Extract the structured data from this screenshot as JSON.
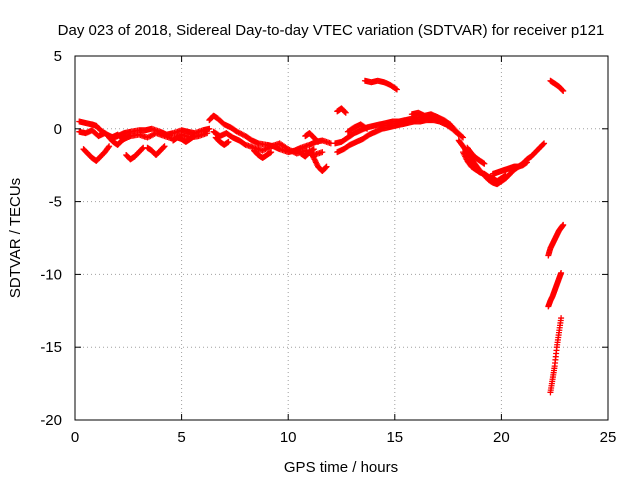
{
  "chart_data": {
    "type": "scatter",
    "title": "Day 023 of 2018, Sidereal Day-to-day VTEC variation (SDTVAR) for receiver p121",
    "xlabel": "GPS time / hours",
    "ylabel": "SDTVAR / TECUs",
    "xlim": [
      0,
      25
    ],
    "ylim": [
      -20,
      5
    ],
    "xticks": [
      "0",
      "5",
      "10",
      "15",
      "20",
      "25"
    ],
    "yticks": [
      "5",
      "0",
      "-5",
      "-10",
      "-15",
      "-20"
    ],
    "grid": true,
    "marker": "+",
    "color": "#ff0000",
    "series": [
      {
        "name": "SDTVAR",
        "tracks": [
          {
            "x": [
              0.2,
              0.5,
              0.8,
              1.0,
              1.2,
              1.5,
              1.8,
              2.0,
              2.3,
              2.6,
              3.0,
              3.3,
              3.6,
              4.0,
              4.3,
              4.6,
              5.0,
              5.3,
              5.6,
              6.0,
              6.3
            ],
            "y": [
              0.5,
              0.4,
              0.3,
              0.2,
              -0.1,
              -0.4,
              -0.6,
              -0.5,
              -0.3,
              -0.2,
              -0.1,
              -0.1,
              0.0,
              -0.2,
              -0.4,
              -0.3,
              -0.1,
              -0.2,
              -0.3,
              -0.1,
              0.0
            ]
          },
          {
            "x": [
              0.2,
              0.5,
              0.8,
              1.1,
              1.4,
              1.7,
              2.0,
              2.3,
              2.6,
              3.0,
              3.4,
              3.8,
              4.2,
              4.6,
              5.0,
              5.4,
              5.8,
              6.2
            ],
            "y": [
              -0.2,
              -0.3,
              -0.1,
              -0.5,
              -0.3,
              -0.6,
              -0.4,
              -0.7,
              -0.5,
              -0.4,
              -0.6,
              -0.3,
              -0.5,
              -0.7,
              -0.4,
              -0.6,
              -0.5,
              -0.3
            ]
          },
          {
            "x": [
              0.4,
              0.6,
              0.8,
              1.0,
              1.2,
              1.4,
              1.6
            ],
            "y": [
              -1.4,
              -1.7,
              -2.0,
              -2.2,
              -1.9,
              -1.6,
              -1.2
            ]
          },
          {
            "x": [
              2.4,
              2.6,
              2.8,
              3.0,
              3.2
            ],
            "y": [
              -1.8,
              -2.1,
              -1.9,
              -1.6,
              -1.3
            ]
          },
          {
            "x": [
              3.4,
              3.6,
              3.8,
              4.0,
              4.2
            ],
            "y": [
              -1.3,
              -1.5,
              -1.8,
              -1.5,
              -1.2
            ]
          },
          {
            "x": [
              1.6,
              1.8,
              2.0,
              2.2,
              2.4
            ],
            "y": [
              -0.6,
              -0.9,
              -1.1,
              -0.8,
              -0.6
            ]
          },
          {
            "x": [
              4.6,
              4.8,
              5.0,
              5.2,
              5.4,
              5.6
            ],
            "y": [
              -0.8,
              -0.6,
              -0.7,
              -0.9,
              -0.7,
              -0.5
            ]
          },
          {
            "x": [
              6.3,
              6.5,
              6.7,
              7.0,
              7.3,
              7.6,
              8.0,
              8.3,
              8.6,
              9.0,
              9.3,
              9.6,
              10.0,
              10.3,
              10.6,
              11.0,
              11.3,
              11.6,
              12.0
            ],
            "y": [
              0.6,
              0.9,
              0.7,
              0.3,
              0.1,
              -0.2,
              -0.5,
              -0.8,
              -1.0,
              -1.1,
              -1.2,
              -1.4,
              -1.6,
              -1.5,
              -1.3,
              -1.1,
              -0.9,
              -0.8,
              -1.0
            ]
          },
          {
            "x": [
              6.5,
              6.8,
              7.1,
              7.4,
              7.7,
              8.0,
              8.4,
              8.8,
              9.2,
              9.6,
              10.0,
              10.4,
              10.8,
              11.2,
              11.6
            ],
            "y": [
              -0.2,
              -0.5,
              -0.3,
              -0.6,
              -0.8,
              -1.1,
              -1.3,
              -1.5,
              -1.2,
              -1.0,
              -1.4,
              -1.7,
              -1.5,
              -1.8,
              -1.6
            ]
          },
          {
            "x": [
              6.6,
              6.8,
              7.0,
              7.2
            ],
            "y": [
              -0.6,
              -0.9,
              -1.1,
              -0.9
            ]
          },
          {
            "x": [
              8.4,
              8.6,
              8.8,
              9.0,
              9.2
            ],
            "y": [
              -1.5,
              -1.8,
              -2.0,
              -1.8,
              -1.6
            ]
          },
          {
            "x": [
              10.6,
              10.8,
              11.0,
              11.2
            ],
            "y": [
              -1.7,
              -1.9,
              -1.6,
              -1.4
            ]
          },
          {
            "x": [
              11.0,
              11.2,
              11.4,
              11.6,
              11.8
            ],
            "y": [
              -1.5,
              -2.0,
              -2.6,
              -2.9,
              -2.6
            ]
          },
          {
            "x": [
              10.8,
              11.0,
              11.2,
              11.4
            ],
            "y": [
              -0.5,
              -0.3,
              -0.6,
              -0.9
            ]
          },
          {
            "x": [
              12.3,
              12.5,
              12.7
            ],
            "y": [
              1.2,
              1.4,
              1.1
            ]
          },
          {
            "x": [
              12.2,
              12.5,
              12.8,
              13.1,
              13.4,
              13.7,
              14.0,
              14.3,
              14.6,
              14.9,
              15.2,
              15.5,
              15.8,
              16.1,
              16.4,
              16.7,
              17.0,
              17.3,
              17.6,
              17.9,
              18.2
            ],
            "y": [
              -1.0,
              -0.9,
              -0.6,
              -0.3,
              -0.1,
              0.1,
              0.2,
              0.3,
              0.4,
              0.5,
              0.5,
              0.6,
              0.7,
              0.8,
              0.8,
              0.9,
              0.8,
              0.6,
              0.3,
              -0.2,
              -0.6
            ]
          },
          {
            "x": [
              12.3,
              12.6,
              12.9,
              13.2,
              13.5,
              13.8,
              14.1,
              14.4,
              14.7,
              15.0,
              15.3,
              15.6,
              15.9,
              16.2,
              16.5,
              16.8,
              17.1,
              17.4,
              17.7,
              18.0
            ],
            "y": [
              -1.6,
              -1.4,
              -1.1,
              -0.9,
              -0.7,
              -0.4,
              -0.2,
              0.0,
              0.1,
              0.2,
              0.3,
              0.4,
              0.5,
              0.5,
              0.6,
              0.6,
              0.5,
              0.3,
              0.0,
              -0.4
            ]
          },
          {
            "x": [
              12.8,
              13.1,
              13.4,
              13.7
            ],
            "y": [
              -0.2,
              0.1,
              0.3,
              0.0
            ]
          },
          {
            "x": [
              15.8,
              16.1,
              16.4,
              16.7,
              17.0
            ],
            "y": [
              1.0,
              1.1,
              0.9,
              1.0,
              0.8
            ]
          },
          {
            "x": [
              13.6,
              13.9,
              14.2,
              14.5,
              14.8,
              15.1
            ],
            "y": [
              3.3,
              3.2,
              3.3,
              3.2,
              3.0,
              2.7
            ]
          },
          {
            "x": [
              18.0,
              18.2,
              18.4,
              18.6,
              18.8,
              19.0,
              19.2,
              19.4,
              19.6,
              19.8,
              20.0,
              20.2,
              20.4,
              20.6,
              20.8,
              21.0,
              21.2,
              21.4,
              21.6,
              21.8,
              22.0
            ],
            "y": [
              -0.8,
              -1.2,
              -1.6,
              -2.1,
              -2.5,
              -2.9,
              -3.2,
              -3.5,
              -3.7,
              -3.8,
              -3.6,
              -3.4,
              -3.1,
              -2.8,
              -2.6,
              -2.4,
              -2.1,
              -1.9,
              -1.6,
              -1.3,
              -1.0
            ]
          },
          {
            "x": [
              18.2,
              18.4,
              18.6,
              18.8,
              19.0,
              19.2,
              19.4,
              19.6,
              19.8,
              20.0,
              20.2
            ],
            "y": [
              -1.6,
              -2.2,
              -2.6,
              -2.8,
              -3.0,
              -3.1,
              -3.3,
              -3.4,
              -3.6,
              -3.4,
              -3.2
            ]
          },
          {
            "x": [
              18.4,
              18.6,
              18.8,
              19.0,
              19.2
            ],
            "y": [
              -1.3,
              -1.7,
              -2.0,
              -2.2,
              -2.4
            ]
          },
          {
            "x": [
              19.6,
              19.8,
              20.0,
              20.2,
              20.4,
              20.6,
              20.8,
              21.0,
              21.2
            ],
            "y": [
              -3.1,
              -3.0,
              -2.9,
              -2.8,
              -2.7,
              -2.6,
              -2.6,
              -2.5,
              -2.3
            ]
          },
          {
            "x": [
              22.3,
              22.5,
              22.7,
              22.9
            ],
            "y": [
              3.3,
              3.1,
              2.9,
              2.6
            ]
          },
          {
            "x": [
              22.2,
              22.3,
              22.4,
              22.5,
              22.6,
              22.7,
              22.8,
              22.9
            ],
            "y": [
              -8.7,
              -8.2,
              -7.9,
              -7.6,
              -7.3,
              -7.0,
              -6.8,
              -6.6
            ]
          },
          {
            "x": [
              22.2,
              22.3,
              22.4,
              22.5,
              22.6,
              22.7,
              22.8
            ],
            "y": [
              -12.2,
              -11.8,
              -11.5,
              -11.1,
              -10.7,
              -10.3,
              -9.9
            ]
          },
          {
            "x": [
              22.3,
              22.4,
              22.5,
              22.6,
              22.7,
              22.8
            ],
            "y": [
              -18.1,
              -17.2,
              -16.3,
              -15.0,
              -14.0,
              -13.0
            ]
          }
        ]
      }
    ]
  }
}
